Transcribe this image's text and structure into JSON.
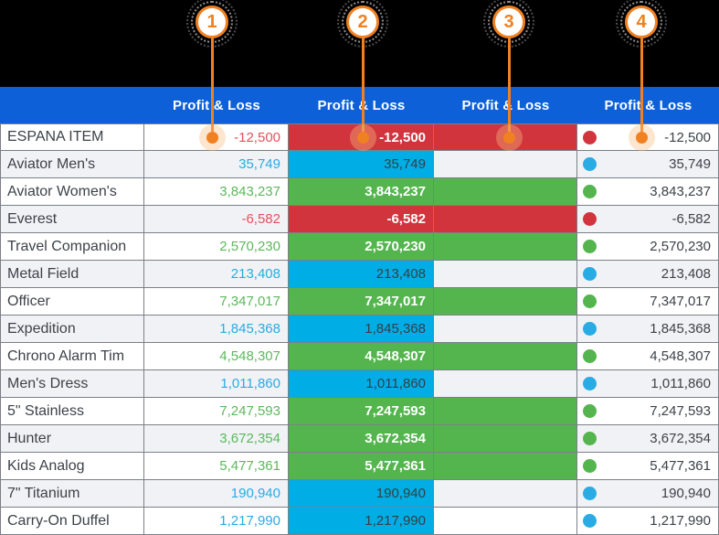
{
  "annotations": {
    "badges": [
      "1",
      "2",
      "3",
      "4"
    ]
  },
  "table": {
    "columns": [
      "Profit & Loss",
      "Profit & Loss",
      "Profit & Loss",
      "Profit & Loss"
    ],
    "rows": [
      {
        "label": "ESPANA ITEM",
        "value": "-12,500",
        "category": "red"
      },
      {
        "label": "Aviator Men's",
        "value": "35,749",
        "category": "blue"
      },
      {
        "label": "Aviator Women's",
        "value": "3,843,237",
        "category": "green"
      },
      {
        "label": "Everest",
        "value": "-6,582",
        "category": "red"
      },
      {
        "label": "Travel Companion",
        "value": "2,570,230",
        "category": "green"
      },
      {
        "label": "Metal Field",
        "value": "213,408",
        "category": "blue"
      },
      {
        "label": "Officer",
        "value": "7,347,017",
        "category": "green"
      },
      {
        "label": "Expedition",
        "value": "1,845,368",
        "category": "blue"
      },
      {
        "label": "Chrono Alarm Tim",
        "value": "4,548,307",
        "category": "green"
      },
      {
        "label": "Men's Dress",
        "value": "1,011,860",
        "category": "blue"
      },
      {
        "label": "5\" Stainless",
        "value": "7,247,593",
        "category": "green"
      },
      {
        "label": "Hunter",
        "value": "3,672,354",
        "category": "green"
      },
      {
        "label": "Kids Analog",
        "value": "5,477,361",
        "category": "green"
      },
      {
        "label": "7\" Titanium",
        "value": "190,940",
        "category": "blue"
      },
      {
        "label": "Carry-On Duffel",
        "value": "1,217,990",
        "category": "blue"
      }
    ]
  },
  "colors": {
    "topbar_bg": "#000000",
    "header_bg": "#0d60d8",
    "row_bg": "#ffffff",
    "row_alt_bg": "#f1f2f6",
    "border": "#7b8087",
    "text_dark": "#3d4248",
    "red_text": "#e3525a",
    "blue_text": "#29abe2",
    "green_text": "#5cb85c",
    "red_fill": "#d2343e",
    "blue_fill": "#00ade4",
    "green_fill": "#54b54e",
    "blue_dot": "#29ace3",
    "fill_text_light": "#ffffff",
    "fill_text_dark": "#35404a",
    "callout_orange": "#ef8122"
  }
}
